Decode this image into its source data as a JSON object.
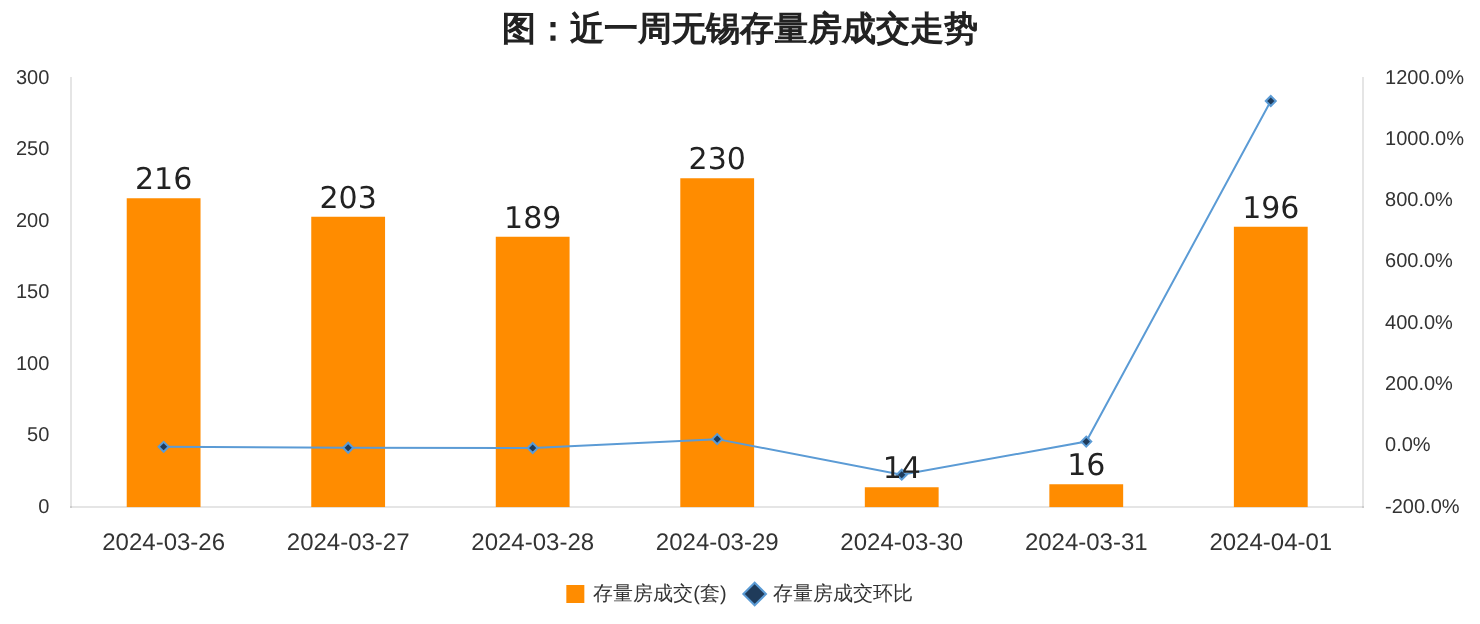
{
  "chart_data": {
    "type": "bar",
    "title": "图：近一周无锡存量房成交走势",
    "categories": [
      "2024-03-26",
      "2024-03-27",
      "2024-03-28",
      "2024-03-29",
      "2024-03-30",
      "2024-03-31",
      "2024-04-01"
    ],
    "series": [
      {
        "name": "存量房成交(套)",
        "color": "#ff8c00",
        "values": [
          216,
          203,
          189,
          230,
          14,
          16,
          196
        ],
        "value_labels": [
          "216",
          "203",
          "189",
          "230",
          "14",
          "16",
          "196"
        ]
      },
      {
        "name": "存量房成交环比",
        "type": "line",
        "axis": "y2",
        "color": "#5b9bd5",
        "values": [
          -3,
          -6,
          -7,
          22,
          -94,
          14,
          1125
        ]
      }
    ],
    "ylim": [
      0,
      300
    ],
    "yticks": [
      0,
      50,
      100,
      150,
      200,
      250,
      300
    ],
    "y2lim": [
      -200,
      1200
    ],
    "y2ticks": [
      {
        "value": -200,
        "label": "-200.0%"
      },
      {
        "value": 0,
        "label": "0.0%"
      },
      {
        "value": 200,
        "label": "200.0%"
      },
      {
        "value": 400,
        "label": "400.0%"
      },
      {
        "value": 600,
        "label": "600.0%"
      },
      {
        "value": 800,
        "label": "800.0%"
      },
      {
        "value": 1000,
        "label": "1000.0%"
      },
      {
        "value": 1200,
        "label": "1200.0%"
      }
    ],
    "legend": "bottom",
    "marker": "diamond",
    "grid": false
  }
}
